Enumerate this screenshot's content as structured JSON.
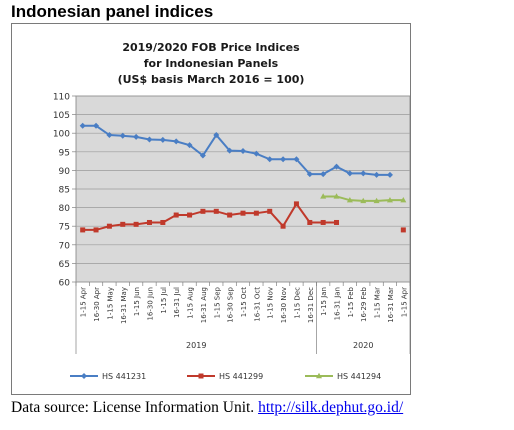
{
  "page": {
    "heading": "Indonesian panel indices",
    "source_text": "Data source: License Information Unit.",
    "source_link": "http://silk.dephut.go.id/"
  },
  "chart_data": {
    "type": "line",
    "title": [
      "2019/2020 FOB Price Indices",
      "for Indonesian Panels",
      "(US$ basis March 2016 = 100)"
    ],
    "ylim": [
      60,
      110
    ],
    "yticks": [
      60,
      65,
      70,
      75,
      80,
      85,
      90,
      95,
      100,
      105,
      110
    ],
    "grid": true,
    "legend_position": "bottom",
    "categories": [
      "1-15 Apr",
      "16-30 Apr",
      "1-15 May",
      "16-31 May",
      "1-15 Jun",
      "16-30 Jun",
      "1-15 Jul",
      "16-31 Jul",
      "1-15 Aug",
      "16-31 Aug",
      "1-15 Sep",
      "16-30 Sep",
      "1-15 Oct",
      "16-31 Oct",
      "1-15 Nov",
      "16-30 Nov",
      "1-15 Dec",
      "16-31 Dec",
      "1-15 Jan",
      "16-31 Jan",
      "1-15 Feb",
      "16-29 Feb",
      "1-15 Mar",
      "16-31 Mar",
      "1-15 Apr"
    ],
    "year_groups": [
      {
        "label": "2019",
        "start": 0,
        "end": 17
      },
      {
        "label": "2020",
        "start": 18,
        "end": 24
      }
    ],
    "series": [
      {
        "name": "HS 441231",
        "color": "#4a7ec4",
        "marker": "diamond",
        "values": [
          102,
          102,
          99.5,
          99.3,
          99,
          98.3,
          98.2,
          97.8,
          96.8,
          94,
          99.5,
          95.3,
          95.2,
          94.5,
          93,
          93,
          93,
          89,
          89,
          91,
          89.2,
          89.2,
          88.8,
          88.8,
          null
        ]
      },
      {
        "name": "HS 441299",
        "color": "#c0392b",
        "marker": "square",
        "values": [
          74,
          74,
          75,
          75.5,
          75.5,
          76,
          76,
          78,
          78,
          79,
          79,
          78,
          78.5,
          78.5,
          79,
          75,
          81,
          76,
          76,
          76,
          null,
          null,
          null,
          null,
          74
        ]
      },
      {
        "name": "HS 441294",
        "color": "#9bbb59",
        "marker": "triangle",
        "values": [
          null,
          null,
          null,
          null,
          null,
          null,
          null,
          null,
          null,
          null,
          null,
          null,
          null,
          null,
          null,
          null,
          null,
          null,
          83,
          83,
          82,
          81.8,
          81.8,
          82,
          82
        ]
      }
    ]
  }
}
